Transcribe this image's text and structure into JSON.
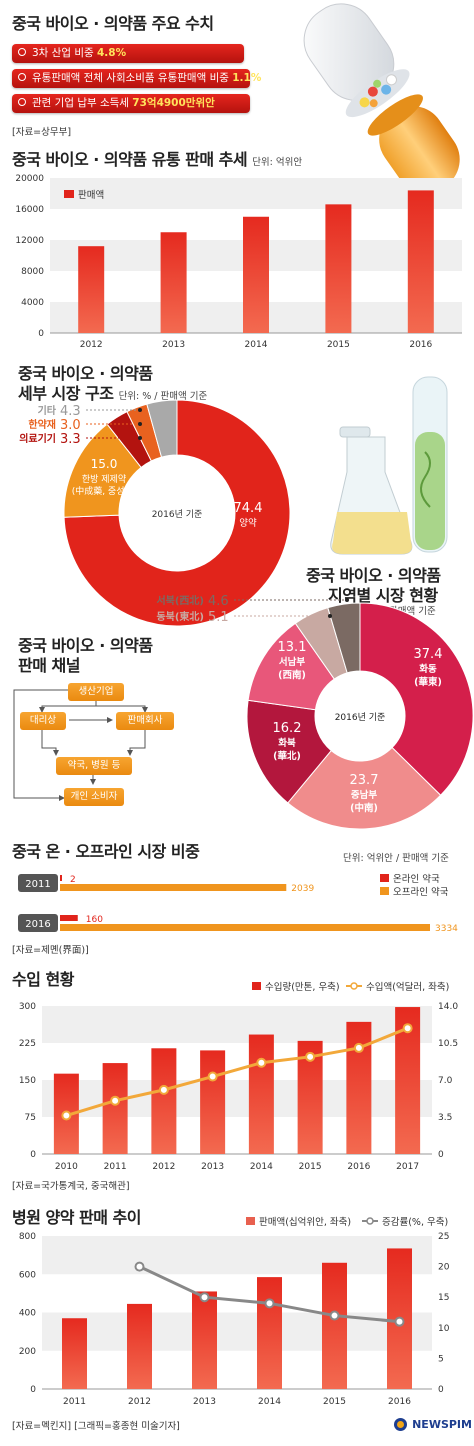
{
  "colors": {
    "red": "#e1241b",
    "dark_red": "#b3130f",
    "orange": "#f0951e",
    "gray": "#a9a9a9",
    "pink": "#f08c8c",
    "light_pink": "#f6b3ad",
    "brown": "#7b6a63",
    "gridband": "#efefef"
  },
  "summary": {
    "title": "중국 바이오 · 의약품 주요 수치",
    "items": [
      {
        "text": "3차 산업 비중 ",
        "value": "4.8%"
      },
      {
        "text": "유통판매액 전체 사회소비품 유통판매액 비중 ",
        "value": "1.1%"
      },
      {
        "text": "관련 기업 납부 소득세 ",
        "value": "73억4900만위안"
      }
    ],
    "source": "[자료=상무부]"
  },
  "sales_trend": {
    "title": "중국 바이오 · 의약품 유통 판매 추세",
    "unit": "단위: 억위안",
    "legend": "판매액",
    "chart_data": {
      "type": "bar",
      "categories": [
        "2012",
        "2013",
        "2014",
        "2015",
        "2016"
      ],
      "values": [
        11200,
        13000,
        15000,
        16600,
        18400
      ],
      "yticks": [
        "20000",
        "16000",
        "12000",
        "8000",
        "4000",
        "0"
      ],
      "ylim": [
        0,
        20000
      ]
    }
  },
  "structure": {
    "title_line1": "중국 바이오 · 의약품",
    "title_line2": "세부 시장 구조",
    "unit": "단위: % / 판매액 기준",
    "center": "2016년 기준",
    "labels": {
      "western": {
        "value": "74.4",
        "name": "양약"
      },
      "chinese": {
        "value": "15.0",
        "name1": "한방 제제약",
        "name2": "(中成藥, 중성약)"
      },
      "herbs": {
        "name": "한약재",
        "value": "3.0"
      },
      "device": {
        "name": "의료기기",
        "value": "3.3"
      },
      "other": {
        "name": "기타",
        "value": "4.3"
      }
    },
    "chart_data": {
      "type": "pie",
      "labels": [
        "양약",
        "한방 제제약",
        "의료기기",
        "한약재",
        "기타"
      ],
      "values": [
        74.4,
        15.0,
        3.3,
        3.0,
        4.3
      ]
    }
  },
  "region": {
    "title_line1": "중국 바이오 · 의약품",
    "title_line2": "지역별 시장 현황",
    "unit": "단위: % / 판매액 기준",
    "center": "2016년 기준",
    "labels": {
      "east": {
        "value": "37.4",
        "name1": "화동",
        "name2": "(華東)"
      },
      "south": {
        "value": "23.7",
        "name1": "중남부",
        "name2": "(中南)"
      },
      "north": {
        "value": "16.2",
        "name1": "화북",
        "name2": "(華北)"
      },
      "sw": {
        "value": "13.1",
        "name1": "서남부",
        "name2": "(西南)"
      },
      "ne": {
        "name": "동북(東北)",
        "value": "5.1"
      },
      "nw": {
        "name": "서북(西北)",
        "value": "4.6"
      }
    },
    "chart_data": {
      "type": "pie",
      "labels": [
        "화동(華東)",
        "중남부(中南)",
        "화북(華北)",
        "서남부(西南)",
        "동북(東北)",
        "서북(西北)"
      ],
      "values": [
        37.4,
        23.7,
        16.2,
        13.1,
        5.1,
        4.6
      ]
    }
  },
  "channel": {
    "title_line1": "중국 바이오 · 의약품",
    "title_line2": "판매 채널",
    "boxes": {
      "maker": "생산기업",
      "agent": "대리상",
      "seller": "판매회사",
      "pharmacy": "약국, 병원 등",
      "consumer": "개인 소비자"
    }
  },
  "online": {
    "title": "중국 온 · 오프라인 시장 비중",
    "unit": "단위: 억위안 / 판매액 기준",
    "legend_online": "온라인 약국",
    "legend_offline": "오프라인 약국",
    "source": "[자료=제몐(界面)]",
    "chart_data": {
      "type": "bar",
      "categories": [
        "2011",
        "2016"
      ],
      "series": [
        {
          "name": "온라인 약국",
          "values": [
            2,
            160
          ]
        },
        {
          "name": "오프라인 약국",
          "values": [
            2039,
            3334
          ]
        }
      ]
    },
    "years": [
      "2011",
      "2016"
    ],
    "online_labels": [
      "2",
      "160"
    ],
    "offline_labels": [
      "2039",
      "3334"
    ]
  },
  "imports": {
    "title": "수입 현황",
    "legend_bar": "수입량(만톤, 우축)",
    "legend_line": "수입액(억달러, 좌축)",
    "source": "[자료=국가통계국, 중국해관]",
    "left_ticks": [
      "300",
      "225",
      "150",
      "75",
      "0"
    ],
    "right_ticks": [
      "14.0",
      "10.5",
      "7.0",
      "3.5",
      "0"
    ],
    "chart_data": {
      "type": "bar",
      "categories": [
        "2010",
        "2011",
        "2012",
        "2013",
        "2014",
        "2015",
        "2016",
        "2017"
      ],
      "series": [
        {
          "name": "수입량(만톤, 우축)",
          "values": [
            7.6,
            8.6,
            10.0,
            9.8,
            11.3,
            10.7,
            12.5,
            13.9
          ]
        },
        {
          "name": "수입액(억달러, 좌축)",
          "values": [
            78,
            108,
            130,
            157,
            185,
            197,
            215,
            255
          ]
        }
      ],
      "ylim_left": [
        0,
        300
      ],
      "ylim_right": [
        0,
        14
      ]
    }
  },
  "hospital": {
    "title": "병원 양약 판매 추이",
    "legend_bar": "판매액(십억위안, 좌축)",
    "legend_line": "증감률(%, 우축)",
    "source": "[자료=멕킨지] [그래픽=홍종현 미술기자]",
    "left_ticks": [
      "800",
      "600",
      "400",
      "200",
      "0"
    ],
    "right_ticks": [
      "25",
      "20",
      "15",
      "10",
      "5",
      "0"
    ],
    "chart_data": {
      "type": "bar",
      "categories": [
        "2011",
        "2012",
        "2013",
        "2014",
        "2015",
        "2016"
      ],
      "series": [
        {
          "name": "판매액(십억위안, 좌축)",
          "values": [
            370,
            445,
            510,
            585,
            660,
            735
          ]
        },
        {
          "name": "증감률(%, 우축)",
          "values": [
            null,
            20,
            15,
            14,
            12,
            11
          ]
        }
      ],
      "ylim_left": [
        0,
        800
      ],
      "ylim_right": [
        0,
        25
      ]
    }
  },
  "brand": "NEWSPIM"
}
